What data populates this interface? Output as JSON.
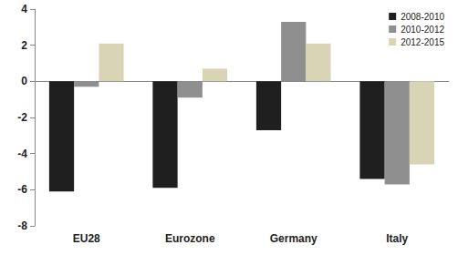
{
  "chart_data": {
    "type": "bar",
    "categories": [
      "EU28",
      "Eurozone",
      "Germany",
      "Italy"
    ],
    "series": [
      {
        "name": "2008-2010",
        "color": "#1f1f1f",
        "values": [
          -6.1,
          -5.9,
          -2.7,
          -5.4
        ]
      },
      {
        "name": "2010-2012",
        "color": "#8f8f8f",
        "values": [
          -0.3,
          -0.9,
          3.3,
          -5.7
        ]
      },
      {
        "name": "2012-2015",
        "color": "#d9d4b6",
        "values": [
          2.1,
          0.7,
          2.1,
          -4.6
        ]
      }
    ],
    "ylim": [
      -8,
      4
    ],
    "yticks": [
      -8,
      -6,
      -4,
      -2,
      0,
      2,
      4
    ],
    "grid": false,
    "legend": "upper right"
  }
}
